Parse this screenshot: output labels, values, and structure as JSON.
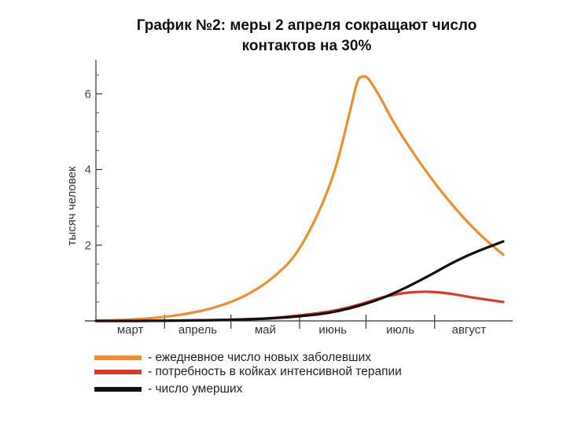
{
  "title_line1": "График №2: меры 2 апреля сокращают число",
  "title_line2": "контактов на 30%",
  "chart_data": {
    "type": "line",
    "title": "График №2: меры 2 апреля сокращают число контактов на 30%",
    "ylabel": "тысяч человек",
    "xlabel": "",
    "ylim": [
      0,
      6.9
    ],
    "xlim": [
      0,
      184
    ],
    "yticks": [
      2,
      4,
      6
    ],
    "months": [
      {
        "label": "март",
        "start": 0,
        "end": 31
      },
      {
        "label": "апрель",
        "start": 31,
        "end": 61
      },
      {
        "label": "май",
        "start": 61,
        "end": 92
      },
      {
        "label": "июнь",
        "start": 92,
        "end": 122
      },
      {
        "label": "июль",
        "start": 122,
        "end": 153
      },
      {
        "label": "август",
        "start": 153,
        "end": 184
      }
    ],
    "series": [
      {
        "name": "ежедневное число новых заболевших",
        "color": "#EE8E32",
        "x": [
          0,
          10,
          20,
          30,
          40,
          50,
          60,
          70,
          80,
          90,
          100,
          108,
          115,
          118,
          120,
          123,
          128,
          135,
          145,
          155,
          165,
          175,
          184
        ],
        "y": [
          0.0,
          0.02,
          0.05,
          0.1,
          0.18,
          0.3,
          0.48,
          0.75,
          1.15,
          1.75,
          2.8,
          4.0,
          5.6,
          6.3,
          6.45,
          6.4,
          5.95,
          5.2,
          4.3,
          3.5,
          2.8,
          2.2,
          1.75
        ]
      },
      {
        "name": "потребность в койках интенсивной терапии",
        "color": "#D63A2B",
        "x": [
          0,
          20,
          40,
          60,
          80,
          100,
          110,
          120,
          130,
          140,
          150,
          160,
          170,
          184
        ],
        "y": [
          0.0,
          0.0,
          0.01,
          0.03,
          0.08,
          0.2,
          0.3,
          0.45,
          0.63,
          0.74,
          0.77,
          0.72,
          0.62,
          0.5
        ]
      },
      {
        "name": "число умерших",
        "color": "#111111",
        "x": [
          0,
          20,
          40,
          60,
          80,
          100,
          110,
          120,
          130,
          140,
          150,
          160,
          170,
          184
        ],
        "y": [
          0.0,
          0.0,
          0.01,
          0.03,
          0.07,
          0.17,
          0.27,
          0.42,
          0.62,
          0.88,
          1.18,
          1.5,
          1.78,
          2.1
        ]
      }
    ]
  },
  "legend": [
    {
      "color": "#EE8E32",
      "label": "- ежедневное число новых заболевших"
    },
    {
      "color": "#D63A2B",
      "label": "- потребность в койках интенсивной терапии"
    },
    {
      "color": "#111111",
      "label": "- число умерших"
    }
  ]
}
